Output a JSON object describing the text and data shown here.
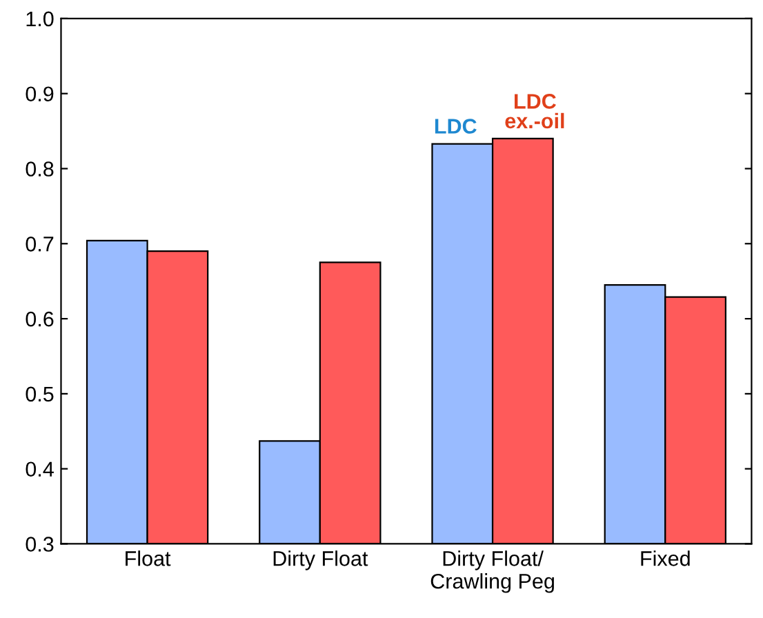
{
  "chart_data": {
    "type": "bar",
    "categories": [
      "Float",
      "Dirty Float",
      "Dirty Float/\nCrawling Peg",
      "Fixed"
    ],
    "series": [
      {
        "name": "LDC",
        "color": "#99bbff",
        "values": [
          0.704,
          0.437,
          0.833,
          0.645
        ]
      },
      {
        "name": "LDC\nex.-oil",
        "color": "#ff5a5a",
        "values": [
          0.69,
          0.675,
          0.84,
          0.629
        ]
      }
    ],
    "ylim": [
      0.3,
      1.0
    ],
    "yticks": [
      0.3,
      0.4,
      0.5,
      0.6,
      0.7,
      0.8,
      0.9,
      {
        "value": 1.0,
        "label": "1.0"
      }
    ],
    "grid": false,
    "legend": false
  }
}
